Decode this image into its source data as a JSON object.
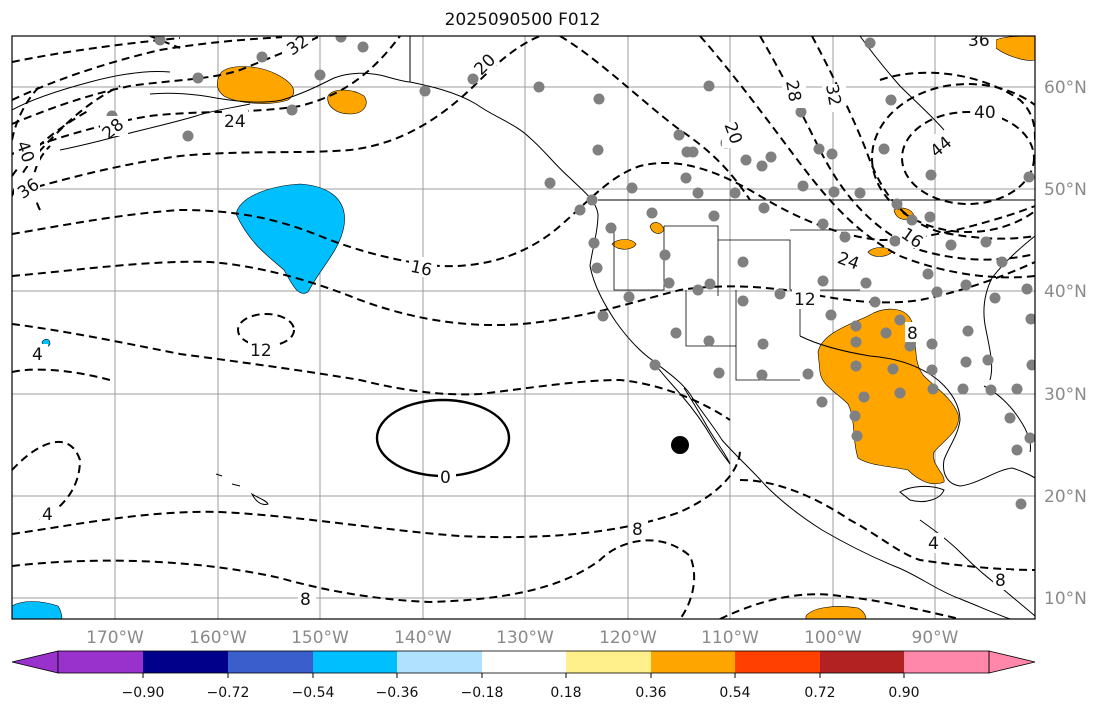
{
  "title": "2025090500 F012",
  "longitude_labels": [
    "170°W",
    "160°W",
    "150°W",
    "140°W",
    "130°W",
    "120°W",
    "110°W",
    "100°W",
    "90°W"
  ],
  "latitude_labels": [
    "60°N",
    "50°N",
    "40°N",
    "30°N",
    "20°N",
    "10°N"
  ],
  "colorbar": {
    "colors": [
      "#9932cc",
      "#00008b",
      "#3a5fcd",
      "#00bfff",
      "#b0e2ff",
      "#ffffff",
      "#fff08c",
      "#ffa500",
      "#ff4000",
      "#b22222",
      "#ff88aa"
    ],
    "tick_labels": [
      "−0.90",
      "−0.72",
      "−0.54",
      "−0.36",
      "−0.18",
      "0.18",
      "0.36",
      "0.54",
      "0.72",
      "0.90"
    ]
  },
  "contour_labels": {
    "l32a": "32",
    "l28a": "28",
    "l24a": "24",
    "l20a": "20",
    "l40a": "40",
    "l36a": "36",
    "l16a": "16",
    "l12a": "12",
    "l4a": "4",
    "l0": "0",
    "l4b": "4",
    "l8a": "8",
    "l8b": "8",
    "l20b": "20",
    "l28b": "28",
    "l32b": "32",
    "l40b": "40",
    "l44": "44",
    "l36b": "36",
    "l16b": "16",
    "l24b": "24",
    "l12b": "12",
    "l8c": "8",
    "l4c": "4",
    "l8d": "8"
  },
  "colors": {
    "positive_fill": "#ffa500",
    "negative_fill": "#00bfff",
    "contour": "#000000",
    "station": "#808080"
  }
}
